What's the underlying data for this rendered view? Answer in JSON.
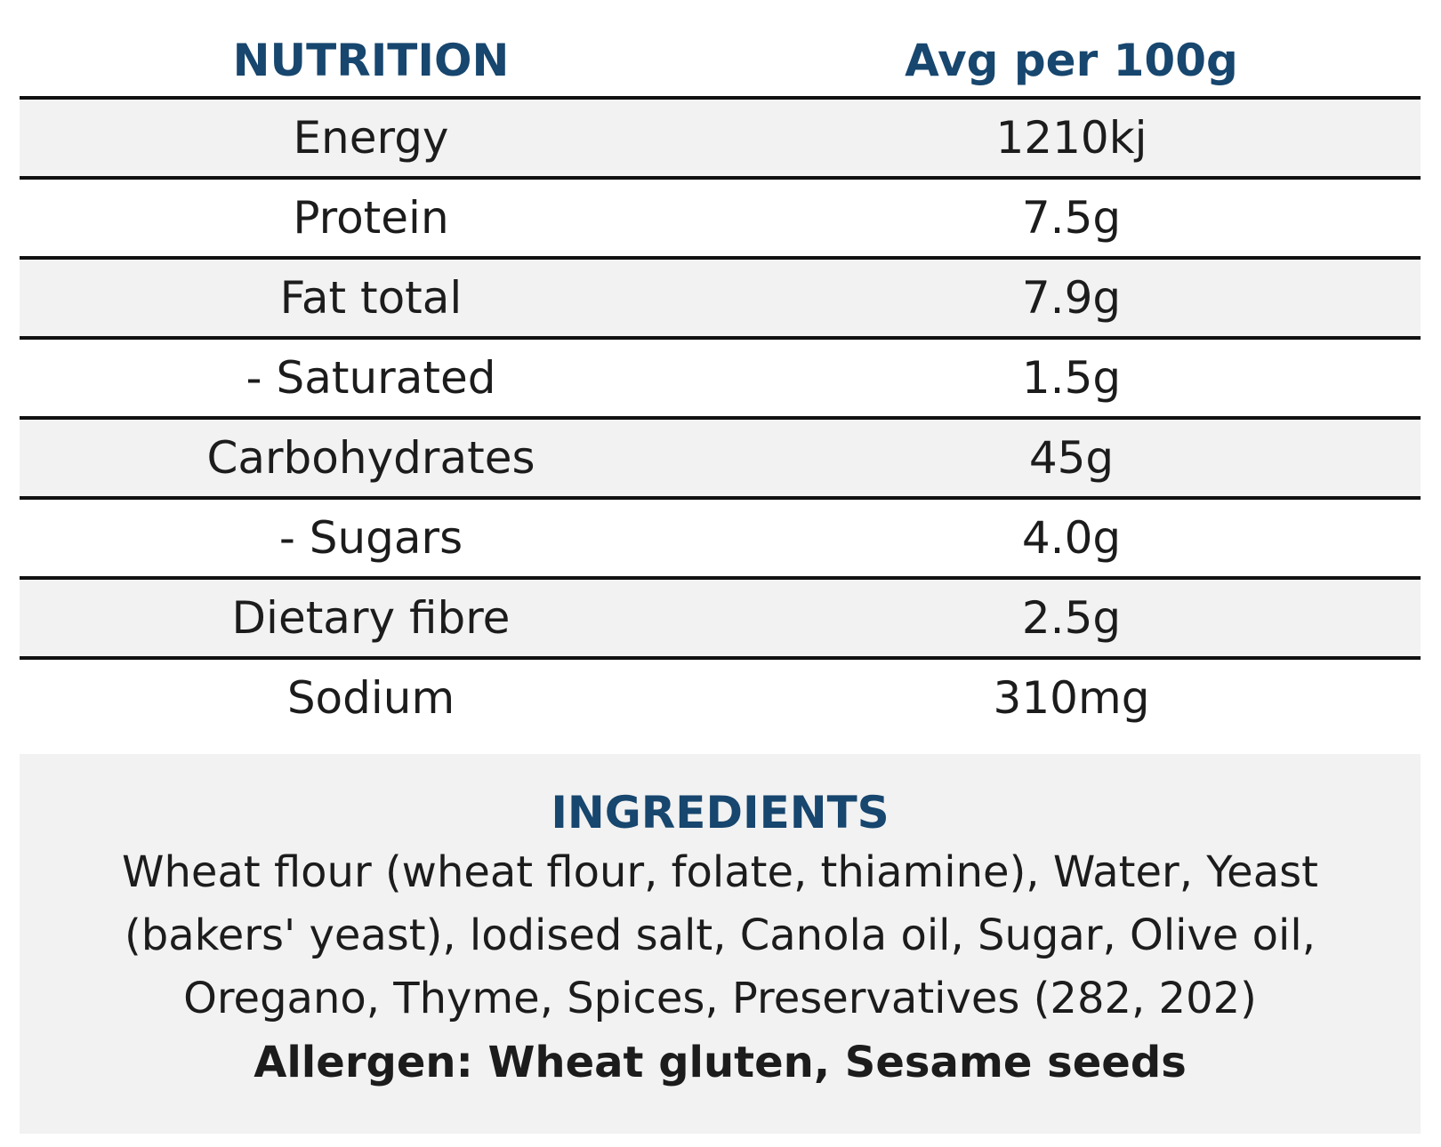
{
  "table": {
    "header": {
      "left": "NUTRITION",
      "right": "Avg per 100g"
    },
    "rows": [
      {
        "label": "Energy",
        "value": "1210kj"
      },
      {
        "label": "Protein",
        "value": "7.5g"
      },
      {
        "label": "Fat total",
        "value": "7.9g"
      },
      {
        "label": "- Saturated",
        "value": "1.5g"
      },
      {
        "label": "Carbohydrates",
        "value": "45g"
      },
      {
        "label": "- Sugars",
        "value": "4.0g"
      },
      {
        "label": "Dietary fibre",
        "value": "2.5g"
      },
      {
        "label": "Sodium",
        "value": "310mg"
      }
    ]
  },
  "ingredients": {
    "title": "INGREDIENTS",
    "text": "Wheat flour (wheat flour, folate, thiamine), Water, Yeast (bakers' yeast), lodised salt, Canola oil, Sugar, Olive oil, Oregano, Thyme, Spices, Preservatives (282, 202)",
    "allergen": "Allergen: Wheat gluten, Sesame seeds"
  },
  "colors": {
    "heading": "#17466e",
    "shade": "#f2f2f2",
    "rule": "#111111"
  }
}
